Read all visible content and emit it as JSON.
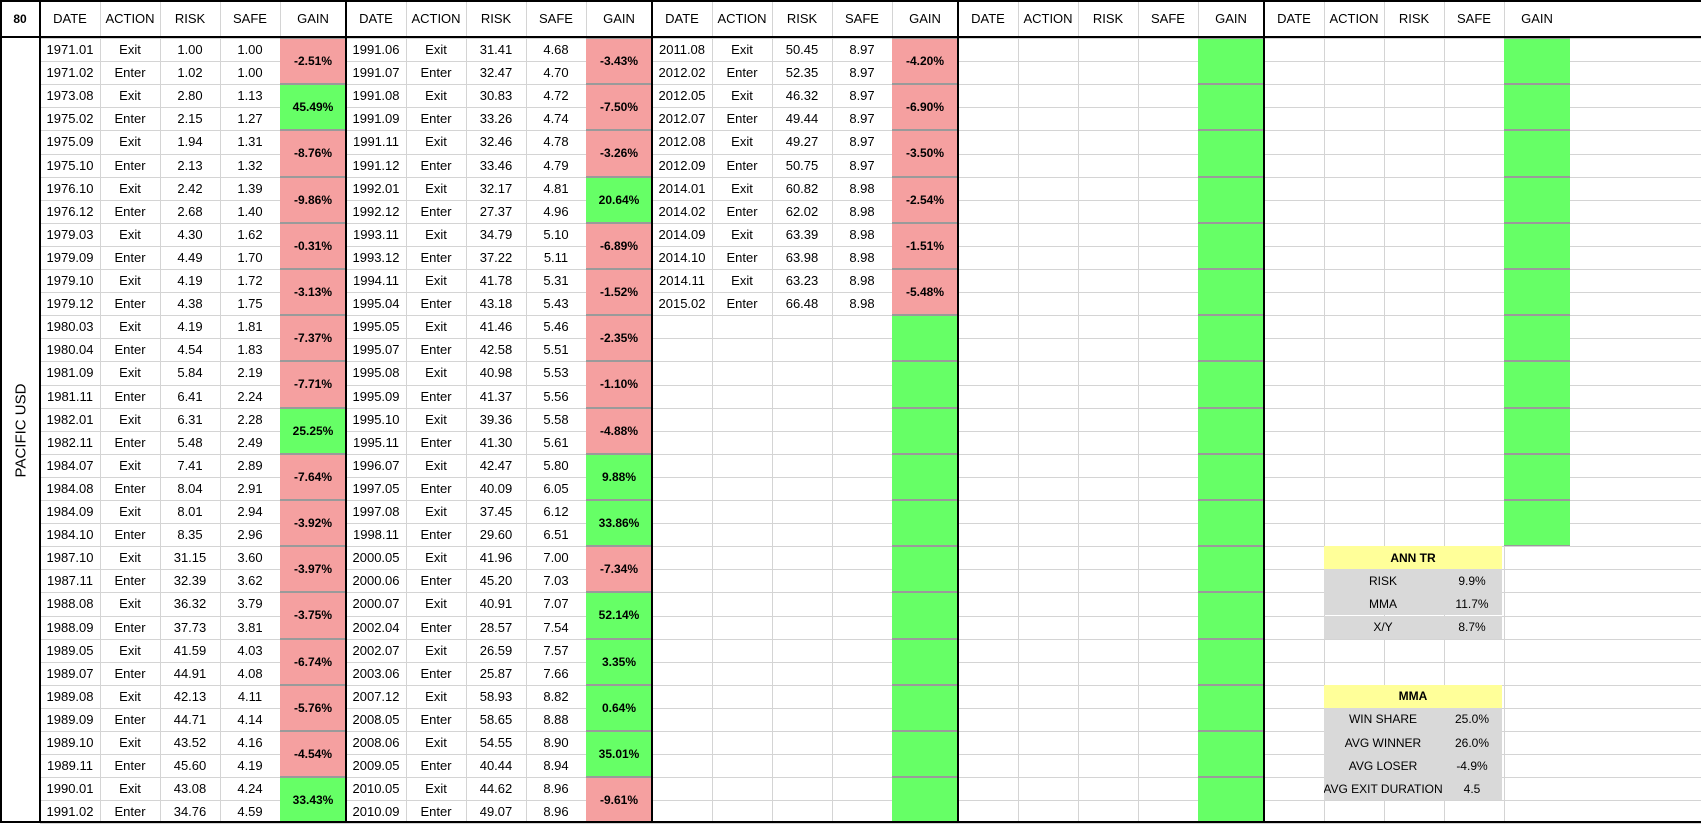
{
  "corner": "80",
  "side_label": "PACIFIC USD",
  "headers": [
    "DATE",
    "ACTION",
    "RISK",
    "SAFE",
    "GAIN"
  ],
  "colors": {
    "positive": "#66ff66",
    "negative": "#f5a0a0",
    "header_yellow": "#ffff99",
    "summary_gray": "#d9d9d9"
  },
  "blocks": [
    {
      "rows": [
        {
          "date": "1971.01",
          "action": "Exit",
          "risk": "1.00",
          "safe": "1.00"
        },
        {
          "date": "1971.02",
          "action": "Enter",
          "risk": "1.02",
          "safe": "1.00"
        },
        {
          "date": "1973.08",
          "action": "Exit",
          "risk": "2.80",
          "safe": "1.13"
        },
        {
          "date": "1975.02",
          "action": "Enter",
          "risk": "2.15",
          "safe": "1.27"
        },
        {
          "date": "1975.09",
          "action": "Exit",
          "risk": "1.94",
          "safe": "1.31"
        },
        {
          "date": "1975.10",
          "action": "Enter",
          "risk": "2.13",
          "safe": "1.32"
        },
        {
          "date": "1976.10",
          "action": "Exit",
          "risk": "2.42",
          "safe": "1.39"
        },
        {
          "date": "1976.12",
          "action": "Enter",
          "risk": "2.68",
          "safe": "1.40"
        },
        {
          "date": "1979.03",
          "action": "Exit",
          "risk": "4.30",
          "safe": "1.62"
        },
        {
          "date": "1979.09",
          "action": "Enter",
          "risk": "4.49",
          "safe": "1.70"
        },
        {
          "date": "1979.10",
          "action": "Exit",
          "risk": "4.19",
          "safe": "1.72"
        },
        {
          "date": "1979.12",
          "action": "Enter",
          "risk": "4.38",
          "safe": "1.75"
        },
        {
          "date": "1980.03",
          "action": "Exit",
          "risk": "4.19",
          "safe": "1.81"
        },
        {
          "date": "1980.04",
          "action": "Enter",
          "risk": "4.54",
          "safe": "1.83"
        },
        {
          "date": "1981.09",
          "action": "Exit",
          "risk": "5.84",
          "safe": "2.19"
        },
        {
          "date": "1981.11",
          "action": "Enter",
          "risk": "6.41",
          "safe": "2.24"
        },
        {
          "date": "1982.01",
          "action": "Exit",
          "risk": "6.31",
          "safe": "2.28"
        },
        {
          "date": "1982.11",
          "action": "Enter",
          "risk": "5.48",
          "safe": "2.49"
        },
        {
          "date": "1984.07",
          "action": "Exit",
          "risk": "7.41",
          "safe": "2.89"
        },
        {
          "date": "1984.08",
          "action": "Enter",
          "risk": "8.04",
          "safe": "2.91"
        },
        {
          "date": "1984.09",
          "action": "Exit",
          "risk": "8.01",
          "safe": "2.94"
        },
        {
          "date": "1984.10",
          "action": "Enter",
          "risk": "8.35",
          "safe": "2.96"
        },
        {
          "date": "1987.10",
          "action": "Exit",
          "risk": "31.15",
          "safe": "3.60"
        },
        {
          "date": "1987.11",
          "action": "Enter",
          "risk": "32.39",
          "safe": "3.62"
        },
        {
          "date": "1988.08",
          "action": "Exit",
          "risk": "36.32",
          "safe": "3.79"
        },
        {
          "date": "1988.09",
          "action": "Enter",
          "risk": "37.73",
          "safe": "3.81"
        },
        {
          "date": "1989.05",
          "action": "Exit",
          "risk": "41.59",
          "safe": "4.03"
        },
        {
          "date": "1989.07",
          "action": "Enter",
          "risk": "44.91",
          "safe": "4.08"
        },
        {
          "date": "1989.08",
          "action": "Exit",
          "risk": "42.13",
          "safe": "4.11"
        },
        {
          "date": "1989.09",
          "action": "Enter",
          "risk": "44.71",
          "safe": "4.14"
        },
        {
          "date": "1989.10",
          "action": "Exit",
          "risk": "43.52",
          "safe": "4.16"
        },
        {
          "date": "1989.11",
          "action": "Enter",
          "risk": "45.60",
          "safe": "4.19"
        },
        {
          "date": "1990.01",
          "action": "Exit",
          "risk": "43.08",
          "safe": "4.24"
        },
        {
          "date": "1991.02",
          "action": "Enter",
          "risk": "34.76",
          "safe": "4.59"
        }
      ],
      "gains": [
        "-2.51%",
        "45.49%",
        "-8.76%",
        "-9.86%",
        "-0.31%",
        "-3.13%",
        "-7.37%",
        "-7.71%",
        "25.25%",
        "-7.64%",
        "-3.92%",
        "-3.97%",
        "-3.75%",
        "-6.74%",
        "-5.76%",
        "-4.54%",
        "33.43%"
      ]
    },
    {
      "rows": [
        {
          "date": "1991.06",
          "action": "Exit",
          "risk": "31.41",
          "safe": "4.68"
        },
        {
          "date": "1991.07",
          "action": "Enter",
          "risk": "32.47",
          "safe": "4.70"
        },
        {
          "date": "1991.08",
          "action": "Exit",
          "risk": "30.83",
          "safe": "4.72"
        },
        {
          "date": "1991.09",
          "action": "Enter",
          "risk": "33.26",
          "safe": "4.74"
        },
        {
          "date": "1991.11",
          "action": "Exit",
          "risk": "32.46",
          "safe": "4.78"
        },
        {
          "date": "1991.12",
          "action": "Enter",
          "risk": "33.46",
          "safe": "4.79"
        },
        {
          "date": "1992.01",
          "action": "Exit",
          "risk": "32.17",
          "safe": "4.81"
        },
        {
          "date": "1992.12",
          "action": "Enter",
          "risk": "27.37",
          "safe": "4.96"
        },
        {
          "date": "1993.11",
          "action": "Exit",
          "risk": "34.79",
          "safe": "5.10"
        },
        {
          "date": "1993.12",
          "action": "Enter",
          "risk": "37.22",
          "safe": "5.11"
        },
        {
          "date": "1994.11",
          "action": "Exit",
          "risk": "41.78",
          "safe": "5.31"
        },
        {
          "date": "1995.04",
          "action": "Enter",
          "risk": "43.18",
          "safe": "5.43"
        },
        {
          "date": "1995.05",
          "action": "Exit",
          "risk": "41.46",
          "safe": "5.46"
        },
        {
          "date": "1995.07",
          "action": "Enter",
          "risk": "42.58",
          "safe": "5.51"
        },
        {
          "date": "1995.08",
          "action": "Exit",
          "risk": "40.98",
          "safe": "5.53"
        },
        {
          "date": "1995.09",
          "action": "Enter",
          "risk": "41.37",
          "safe": "5.56"
        },
        {
          "date": "1995.10",
          "action": "Exit",
          "risk": "39.36",
          "safe": "5.58"
        },
        {
          "date": "1995.11",
          "action": "Enter",
          "risk": "41.30",
          "safe": "5.61"
        },
        {
          "date": "1996.07",
          "action": "Exit",
          "risk": "42.47",
          "safe": "5.80"
        },
        {
          "date": "1997.05",
          "action": "Enter",
          "risk": "40.09",
          "safe": "6.05"
        },
        {
          "date": "1997.08",
          "action": "Exit",
          "risk": "37.45",
          "safe": "6.12"
        },
        {
          "date": "1998.11",
          "action": "Enter",
          "risk": "29.60",
          "safe": "6.51"
        },
        {
          "date": "2000.05",
          "action": "Exit",
          "risk": "41.96",
          "safe": "7.00"
        },
        {
          "date": "2000.06",
          "action": "Enter",
          "risk": "45.20",
          "safe": "7.03"
        },
        {
          "date": "2000.07",
          "action": "Exit",
          "risk": "40.91",
          "safe": "7.07"
        },
        {
          "date": "2002.04",
          "action": "Enter",
          "risk": "28.57",
          "safe": "7.54"
        },
        {
          "date": "2002.07",
          "action": "Exit",
          "risk": "26.59",
          "safe": "7.57"
        },
        {
          "date": "2003.06",
          "action": "Enter",
          "risk": "25.87",
          "safe": "7.66"
        },
        {
          "date": "2007.12",
          "action": "Exit",
          "risk": "58.93",
          "safe": "8.82"
        },
        {
          "date": "2008.05",
          "action": "Enter",
          "risk": "58.65",
          "safe": "8.88"
        },
        {
          "date": "2008.06",
          "action": "Exit",
          "risk": "54.55",
          "safe": "8.90"
        },
        {
          "date": "2009.05",
          "action": "Enter",
          "risk": "40.44",
          "safe": "8.94"
        },
        {
          "date": "2010.05",
          "action": "Exit",
          "risk": "44.62",
          "safe": "8.96"
        },
        {
          "date": "2010.09",
          "action": "Enter",
          "risk": "49.07",
          "safe": "8.96"
        }
      ],
      "gains": [
        "-3.43%",
        "-7.50%",
        "-3.26%",
        "20.64%",
        "-6.89%",
        "-1.52%",
        "-2.35%",
        "-1.10%",
        "-4.88%",
        "9.88%",
        "33.86%",
        "-7.34%",
        "52.14%",
        "3.35%",
        "0.64%",
        "35.01%",
        "-9.61%"
      ]
    },
    {
      "rows": [
        {
          "date": "2011.08",
          "action": "Exit",
          "risk": "50.45",
          "safe": "8.97"
        },
        {
          "date": "2012.02",
          "action": "Enter",
          "risk": "52.35",
          "safe": "8.97"
        },
        {
          "date": "2012.05",
          "action": "Exit",
          "risk": "46.32",
          "safe": "8.97"
        },
        {
          "date": "2012.07",
          "action": "Enter",
          "risk": "49.44",
          "safe": "8.97"
        },
        {
          "date": "2012.08",
          "action": "Exit",
          "risk": "49.27",
          "safe": "8.97"
        },
        {
          "date": "2012.09",
          "action": "Enter",
          "risk": "50.75",
          "safe": "8.97"
        },
        {
          "date": "2014.01",
          "action": "Exit",
          "risk": "60.82",
          "safe": "8.98"
        },
        {
          "date": "2014.02",
          "action": "Enter",
          "risk": "62.02",
          "safe": "8.98"
        },
        {
          "date": "2014.09",
          "action": "Exit",
          "risk": "63.39",
          "safe": "8.98"
        },
        {
          "date": "2014.10",
          "action": "Enter",
          "risk": "63.98",
          "safe": "8.98"
        },
        {
          "date": "2014.11",
          "action": "Exit",
          "risk": "63.23",
          "safe": "8.98"
        },
        {
          "date": "2015.02",
          "action": "Enter",
          "risk": "66.48",
          "safe": "8.98"
        }
      ],
      "gains": [
        "-4.20%",
        "-6.90%",
        "-3.50%",
        "-2.54%",
        "-1.51%",
        "-5.48%",
        "",
        "",
        "",
        "",
        "",
        "",
        "",
        "",
        "",
        "",
        ""
      ]
    },
    {
      "rows": [],
      "gains": [
        "",
        "",
        "",
        "",
        "",
        "",
        "",
        "",
        "",
        "",
        "",
        "",
        "",
        "",
        "",
        "",
        ""
      ]
    },
    {
      "rows": [],
      "gains": [
        "",
        "",
        "",
        "",
        "",
        "",
        "",
        "",
        "",
        "",
        ""
      ]
    }
  ],
  "summary": {
    "ann_tr": {
      "title": "ANN TR",
      "items": [
        {
          "label": "RISK",
          "value": "9.9%"
        },
        {
          "label": "MMA",
          "value": "11.7%"
        },
        {
          "label": "X/Y",
          "value": "8.7%"
        }
      ]
    },
    "mma": {
      "title": "MMA",
      "items": [
        {
          "label": "WIN SHARE",
          "value": "25.0%"
        },
        {
          "label": "AVG WINNER",
          "value": "26.0%"
        },
        {
          "label": "AVG LOSER",
          "value": "-4.9%"
        },
        {
          "label": "AVG EXIT DURATION",
          "value": "4.5"
        }
      ]
    }
  }
}
